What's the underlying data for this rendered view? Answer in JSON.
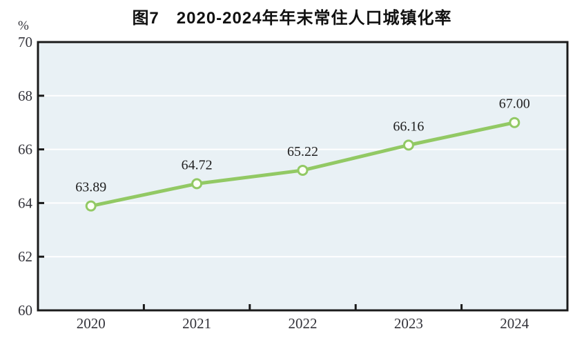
{
  "figure": {
    "title": "图7　2020-2024年年末常住人口城镇化率",
    "unit_label": "%"
  },
  "colors": {
    "line": "#92C964",
    "marker_fill": "#FDFFF6",
    "plot_background": "#E9F1F5",
    "gridline": "#FFFFFF",
    "axis": "#1A1A1A",
    "tick_label": "#33333A",
    "data_label": "#1F1F1F"
  },
  "chart_data": {
    "type": "line",
    "title": "图7　2020-2024年年末常住人口城镇化率",
    "ylabel": "%",
    "xlabel": "",
    "categories": [
      "2020",
      "2021",
      "2022",
      "2023",
      "2024"
    ],
    "series": [
      {
        "name": "年末常住人口城镇化率",
        "values": [
          63.89,
          64.72,
          65.22,
          66.16,
          67.0
        ]
      }
    ],
    "data_labels": [
      "63.89",
      "64.72",
      "65.22",
      "66.16",
      "67.00"
    ],
    "ylim": [
      60,
      70
    ],
    "ytick_interval": 2,
    "yticks": [
      "70",
      "68",
      "66",
      "64",
      "62",
      "60"
    ],
    "grid": true,
    "gridline_style": "solid-white-horizontal",
    "legend_position": "none",
    "marker": "open-circle"
  }
}
